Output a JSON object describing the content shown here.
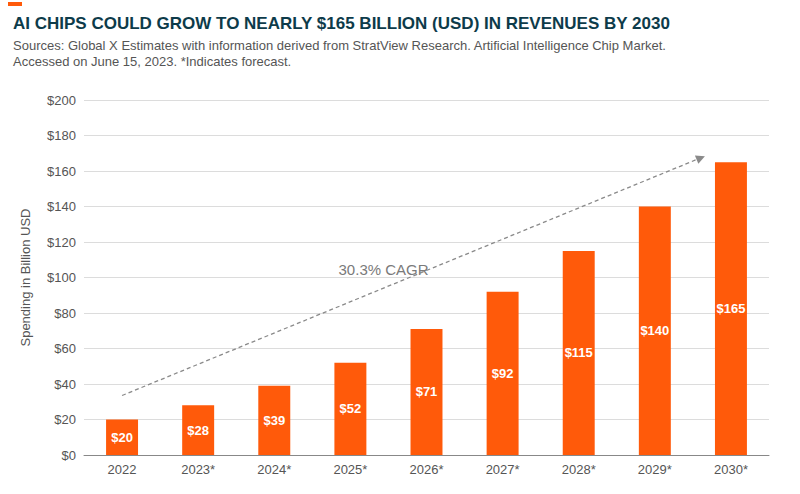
{
  "chart_data": {
    "type": "bar",
    "title": "AI CHIPS COULD GROW TO NEARLY $165 BILLION (USD) IN REVENUES BY 2030",
    "subtitle": "Sources: Global X Estimates with information derived from StratView Research. Artificial Intelligence Chip Market.\nAccessed on June 15, 2023. *Indicates forecast.",
    "ylabel": "Spending in Billion USD",
    "annotation": "30.3% CAGR",
    "categories": [
      "2022",
      "2023*",
      "2024*",
      "2025*",
      "2026*",
      "2027*",
      "2028*",
      "2029*",
      "2030*"
    ],
    "values": [
      20,
      28,
      39,
      52,
      71,
      92,
      115,
      140,
      165
    ],
    "value_labels": [
      "$20",
      "$28",
      "$39",
      "$52",
      "$71",
      "$92",
      "$115",
      "$140",
      "$165"
    ],
    "color": "#ff5a0a",
    "ylim": [
      0,
      200
    ],
    "yticks": [
      {
        "value": 0,
        "label": "$0"
      },
      {
        "value": 20,
        "label": "$20"
      },
      {
        "value": 40,
        "label": "$40"
      },
      {
        "value": 60,
        "label": "$60"
      },
      {
        "value": 80,
        "label": "$80"
      },
      {
        "value": 100,
        "label": "$100"
      },
      {
        "value": 120,
        "label": "$120"
      },
      {
        "value": 140,
        "label": "$140"
      },
      {
        "value": 160,
        "label": "$160"
      },
      {
        "value": 180,
        "label": "$180"
      },
      {
        "value": 200,
        "label": "$200"
      }
    ],
    "grid": true,
    "data_labels": true
  }
}
